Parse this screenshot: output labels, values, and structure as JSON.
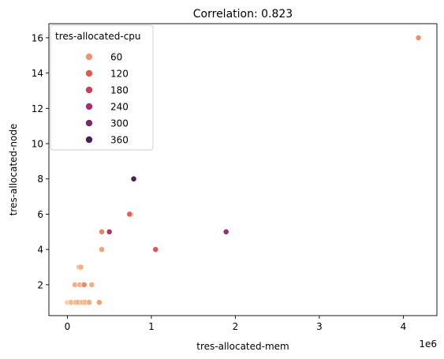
{
  "chart_data": {
    "type": "scatter",
    "title": "Correlation: 0.823",
    "xlabel": "tres-allocated-mem",
    "ylabel": "tres-allocated-node",
    "x_offset_label": "1e6",
    "x_multiplier": 1000000,
    "xlim": [
      -220000,
      4400000
    ],
    "ylim": [
      0.25,
      16.8
    ],
    "x_ticks": [
      0,
      1000000,
      2000000,
      3000000,
      4000000
    ],
    "x_tick_labels": [
      "0",
      "1",
      "2",
      "3",
      "4"
    ],
    "y_ticks": [
      2,
      4,
      6,
      8,
      10,
      12,
      14,
      16
    ],
    "y_tick_labels": [
      "2",
      "4",
      "6",
      "8",
      "10",
      "12",
      "14",
      "16"
    ],
    "grid": false,
    "legend": {
      "title": "tres-allocated-cpu",
      "placement": "top-left",
      "entries": [
        {
          "label": "60",
          "value": 60
        },
        {
          "label": "120",
          "value": 120
        },
        {
          "label": "180",
          "value": 180
        },
        {
          "label": "240",
          "value": 240
        },
        {
          "label": "300",
          "value": 300
        },
        {
          "label": "360",
          "value": 360
        }
      ]
    },
    "hue_colors": [
      {
        "value": 0,
        "color": "#f4c08f"
      },
      {
        "value": 60,
        "color": "#eb9670"
      },
      {
        "value": 120,
        "color": "#e05a52"
      },
      {
        "value": 180,
        "color": "#c9405e"
      },
      {
        "value": 240,
        "color": "#a3316f"
      },
      {
        "value": 300,
        "color": "#7a2a6b"
      },
      {
        "value": 360,
        "color": "#482257"
      }
    ],
    "points": [
      {
        "x": 4180000,
        "y": 16,
        "hue": 64
      },
      {
        "x": 790000,
        "y": 8,
        "hue": 384
      },
      {
        "x": 750000,
        "y": 6,
        "hue": 120
      },
      {
        "x": 740000,
        "y": 6,
        "hue": 112
      },
      {
        "x": 410000,
        "y": 5,
        "hue": 80
      },
      {
        "x": 500000,
        "y": 5,
        "hue": 224
      },
      {
        "x": 1890000,
        "y": 5,
        "hue": 256
      },
      {
        "x": 410000,
        "y": 4,
        "hue": 40
      },
      {
        "x": 1050000,
        "y": 4,
        "hue": 120
      },
      {
        "x": 140000,
        "y": 3,
        "hue": 24
      },
      {
        "x": 160000,
        "y": 3,
        "hue": 24
      },
      {
        "x": 90000,
        "y": 2,
        "hue": 20
      },
      {
        "x": 150000,
        "y": 2,
        "hue": 24
      },
      {
        "x": 190000,
        "y": 2,
        "hue": 96
      },
      {
        "x": 200000,
        "y": 2,
        "hue": 72
      },
      {
        "x": 290000,
        "y": 2,
        "hue": 24
      },
      {
        "x": 0,
        "y": 1,
        "hue": 8
      },
      {
        "x": 15000,
        "y": 1,
        "hue": 12
      },
      {
        "x": 30000,
        "y": 1,
        "hue": 16
      },
      {
        "x": 45000,
        "y": 1,
        "hue": 8
      },
      {
        "x": 100000,
        "y": 1,
        "hue": 16
      },
      {
        "x": 130000,
        "y": 1,
        "hue": 24
      },
      {
        "x": 170000,
        "y": 1,
        "hue": 60
      },
      {
        "x": 185000,
        "y": 1,
        "hue": 32
      },
      {
        "x": 210000,
        "y": 1,
        "hue": 16
      },
      {
        "x": 260000,
        "y": 1,
        "hue": 24
      },
      {
        "x": 380000,
        "y": 1,
        "hue": 40
      }
    ]
  }
}
